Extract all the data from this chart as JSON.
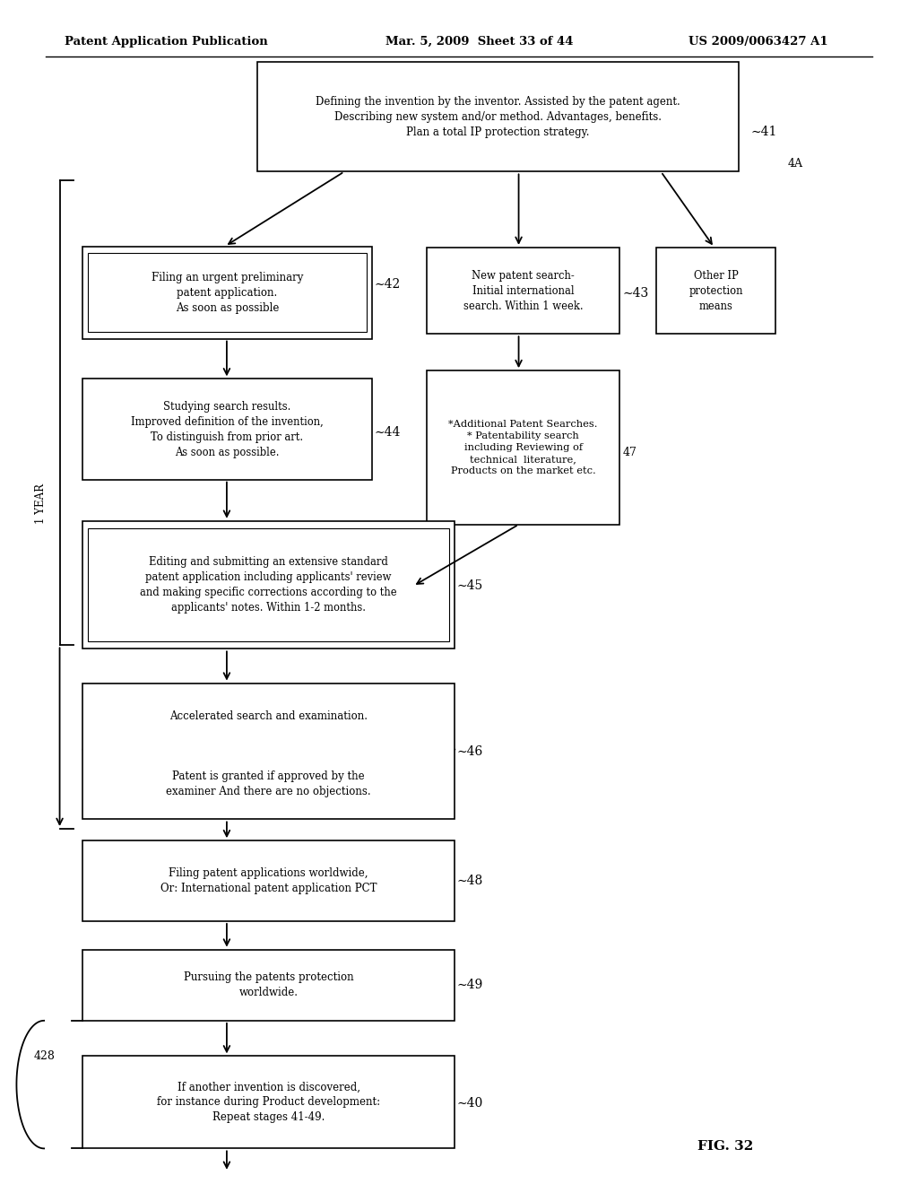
{
  "bg_color": "#ffffff",
  "header_left": "Patent Application Publication",
  "header_mid": "Mar. 5, 2009  Sheet 33 of 44",
  "header_right": "US 2009/0063427 A1",
  "fig_label": "FIG. 32"
}
